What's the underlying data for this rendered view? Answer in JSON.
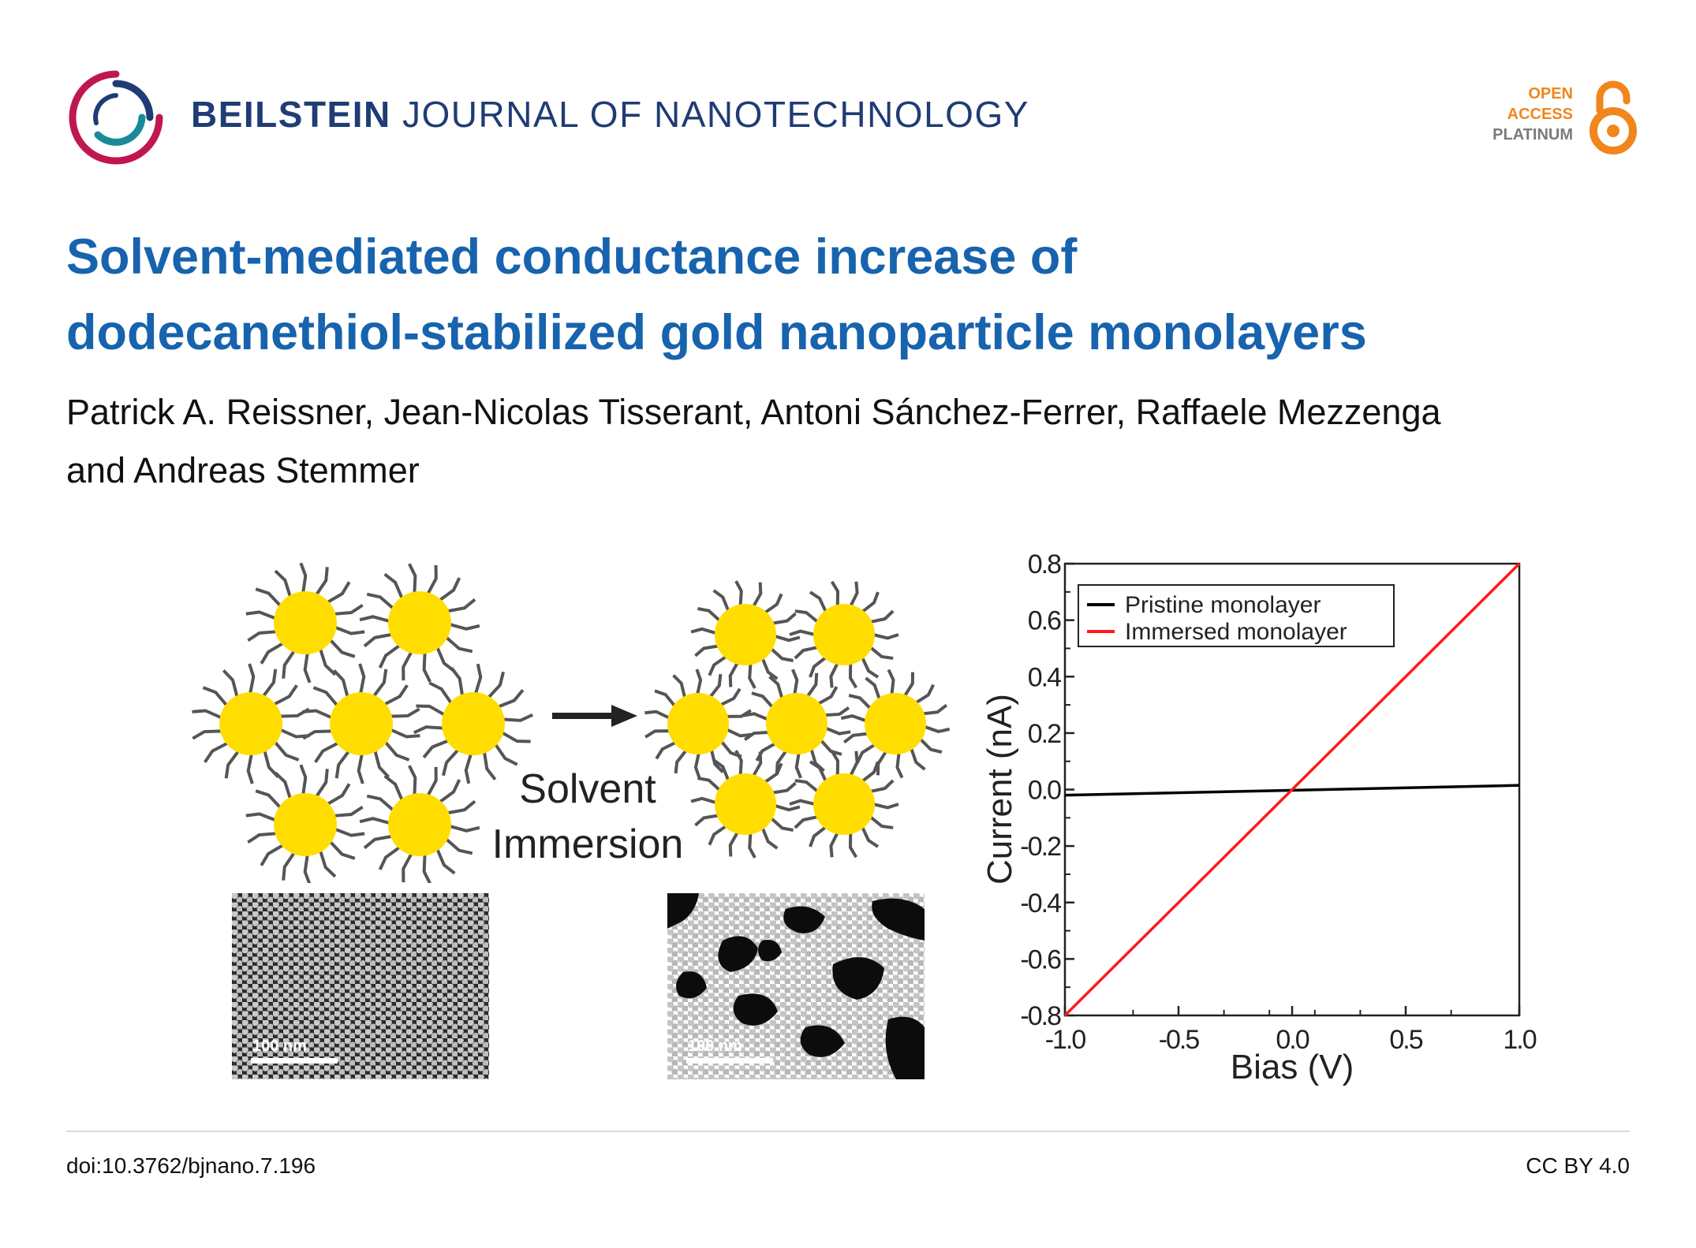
{
  "journal": {
    "name_bold": "BEILSTEIN",
    "name_light": "JOURNAL OF NANOTECHNOLOGY",
    "logo_icon": "beilstein-rings-icon",
    "colors": {
      "navy": "#1f3c74",
      "teal": "#1a8a9a",
      "crimson": "#c0174f"
    }
  },
  "open_access": {
    "line1": "OPEN",
    "line2": "ACCESS",
    "line3": "PLATINUM",
    "icon": "open-lock-icon",
    "colors": {
      "orange": "#f0861c",
      "gray": "#7a7a7a"
    }
  },
  "article": {
    "title_line1": "Solvent-mediated conductance increase of",
    "title_line2": "dodecanethiol-stabilized gold nanoparticle monolayers",
    "authors_line1": "Patrick A. Reissner, Jean-Nicolas Tisserant, Antoni Sánchez-Ferrer, Raffaele Mezzenga",
    "authors_line2": "and Andreas Stemmer",
    "title_color": "#1763ae"
  },
  "graphic": {
    "label_line1": "Solvent",
    "label_line2": "Immersion",
    "scale_left": "100 nm",
    "scale_right": "100 nm",
    "particle_color": "#ffdd00",
    "ligand_color": "#555555"
  },
  "chart_data": {
    "type": "line",
    "xlabel": "Bias (V)",
    "ylabel": "Current (nA)",
    "xlim": [
      -1.0,
      1.0
    ],
    "ylim": [
      -0.8,
      0.8
    ],
    "xticks": [
      "-1.0",
      "-0.5",
      "0.0",
      "0.5",
      "1.0"
    ],
    "yticks": [
      "0.8",
      "0.6",
      "0.4",
      "0.2",
      "0.0",
      "-0.2",
      "-0.4",
      "-0.6",
      "-0.8"
    ],
    "legend_position": "top-left",
    "grid": false,
    "series": [
      {
        "name": "Pristine monolayer",
        "color": "#000000",
        "x": [
          -1.0,
          1.0
        ],
        "y": [
          -0.02,
          0.015
        ]
      },
      {
        "name": "Immersed monolayer",
        "color": "#ff1a1a",
        "x": [
          -1.0,
          1.0
        ],
        "y": [
          -0.8,
          0.8
        ]
      }
    ]
  },
  "footer": {
    "doi": "doi:10.3762/bjnano.7.196",
    "license": "CC BY 4.0"
  }
}
